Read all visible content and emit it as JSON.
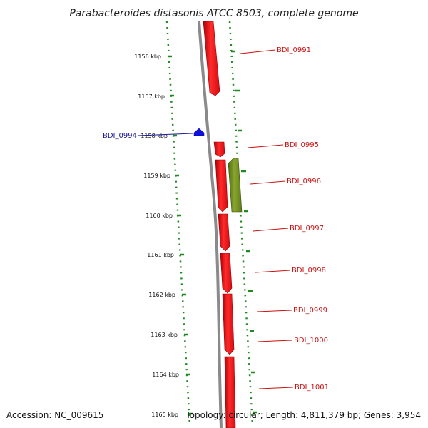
{
  "title": "Parabacteroides distasonis ATCC 8503, complete genome",
  "accession_text": "Accession: NC_009615",
  "summary_text": "Topology: circular; Length: 4,811,379 bp; Genes: 3,954",
  "colors": {
    "forward_gene": "#e8141a",
    "reverse_gene": "#6e8a1e",
    "selected_gene": "#1111dd",
    "label_forward": "#cc1111",
    "label_selected": "#1a1a99",
    "dotted_track": "#1f8a1f",
    "backbone": "#888888"
  },
  "ruler": {
    "unit": "kbp",
    "ticks": [
      "1156 kbp",
      "1157 kbp",
      "1158 kbp",
      "1159 kbp",
      "1160 kbp",
      "1161 kbp",
      "1162 kbp",
      "1163 kbp",
      "1164 kbp",
      "1165 kbp"
    ]
  },
  "genes": [
    {
      "id": "BDI_0991",
      "strand": "+"
    },
    {
      "id": "BDI_0994",
      "strand": "selected"
    },
    {
      "id": "BDI_0995",
      "strand": "+"
    },
    {
      "id": "BDI_0996",
      "strand": "-"
    },
    {
      "id": "BDI_0997",
      "strand": "+"
    },
    {
      "id": "BDI_0998",
      "strand": "+"
    },
    {
      "id": "BDI_0999",
      "strand": "+"
    },
    {
      "id": "BDI_1000",
      "strand": "+"
    },
    {
      "id": "BDI_1001",
      "strand": "+"
    }
  ]
}
